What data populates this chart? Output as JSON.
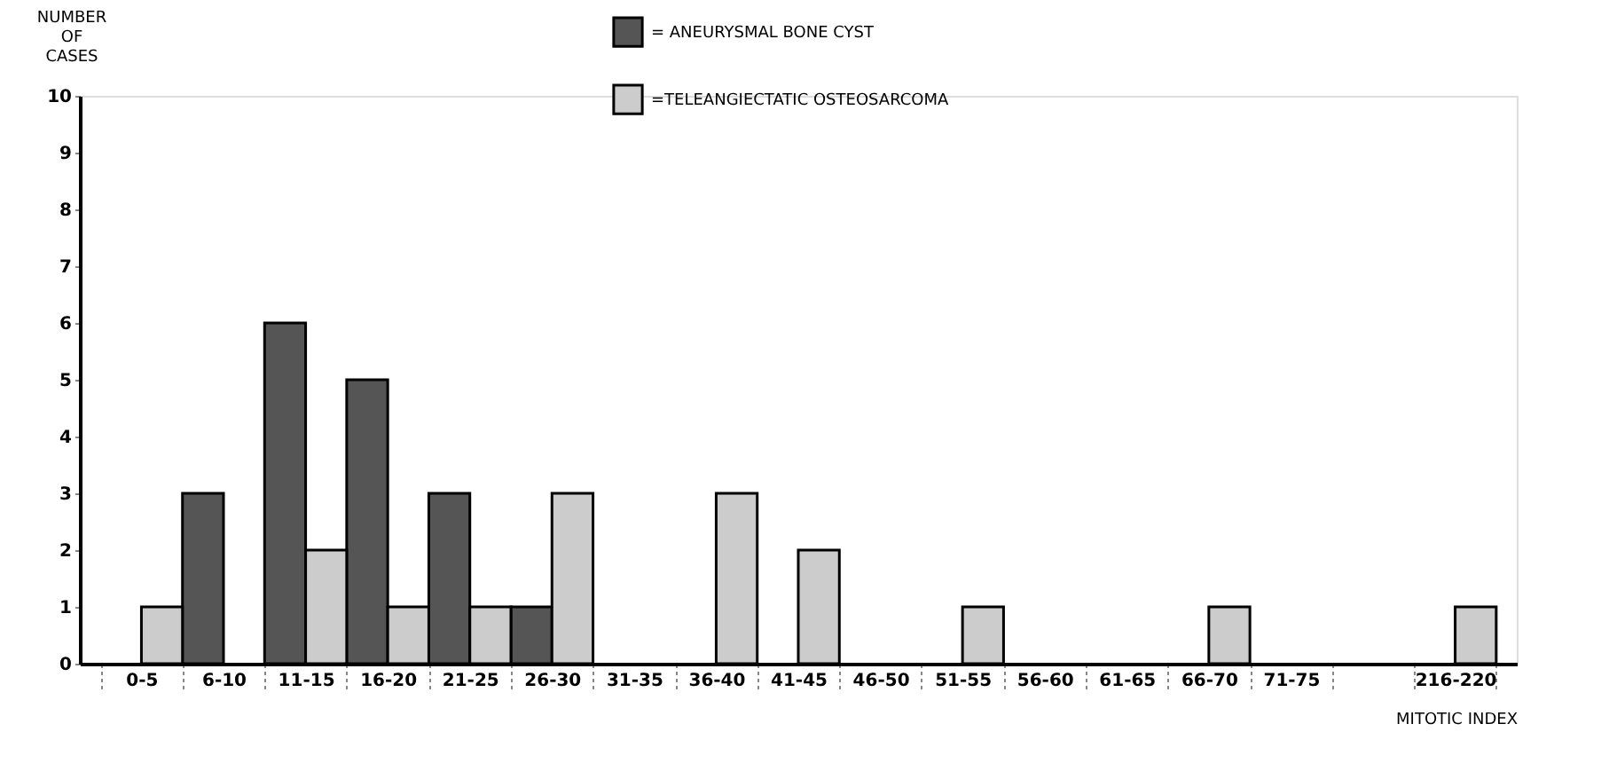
{
  "chart_data": {
    "type": "bar",
    "categories": [
      "0-5",
      "6-10",
      "11-15",
      "16-20",
      "21-25",
      "26-30",
      "31-35",
      "36-40",
      "41-45",
      "46-50",
      "51-55",
      "56-60",
      "61-65",
      "66-70",
      "71-75",
      null,
      "216-220"
    ],
    "series": [
      {
        "name": "= ANEURYSMAL BONE CYST",
        "color": "#555555",
        "values": [
          null,
          3,
          6,
          5,
          3,
          1,
          null,
          null,
          null,
          null,
          null,
          null,
          null,
          null,
          null,
          null,
          null
        ]
      },
      {
        "name": "=TELEANGIECTATIC OSTEOSARCOMA",
        "color": "#cccccc",
        "values": [
          1,
          null,
          2,
          1,
          1,
          3,
          null,
          3,
          2,
          null,
          1,
          null,
          null,
          1,
          null,
          null,
          1
        ]
      }
    ],
    "xlabel": "MITOTIC INDEX",
    "ylabel": "NUMBER OF CASES",
    "ylim": [
      0,
      10
    ],
    "yticks": [
      0,
      1,
      2,
      3,
      4,
      5,
      6,
      7,
      8,
      9,
      10
    ],
    "grid": false,
    "legend": "top"
  }
}
